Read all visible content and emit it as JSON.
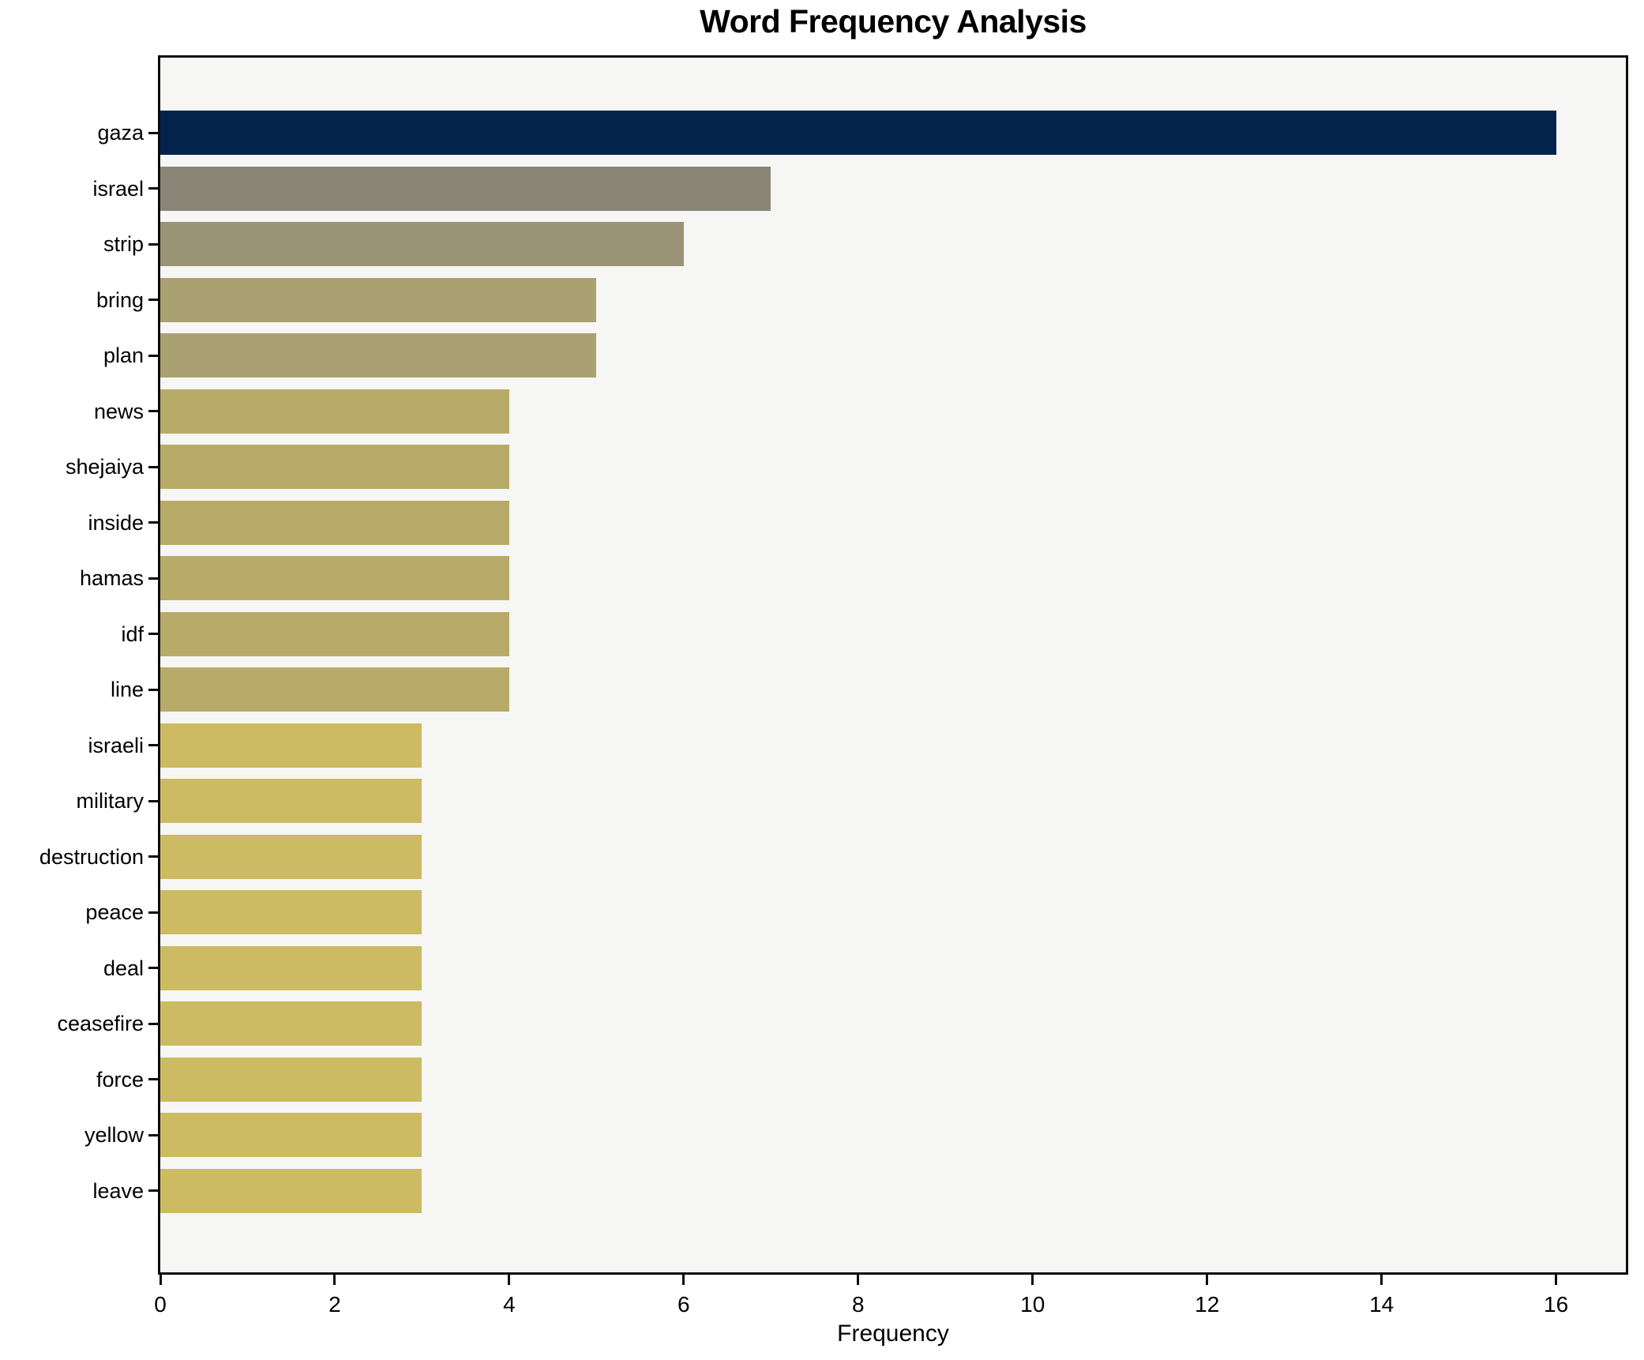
{
  "title": "Word Frequency Analysis",
  "xlabel": "Frequency",
  "chart_data": {
    "type": "bar",
    "orientation": "horizontal",
    "title": "Word Frequency Analysis",
    "xlabel": "Frequency",
    "ylabel": "",
    "categories": [
      "gaza",
      "israel",
      "strip",
      "bring",
      "plan",
      "news",
      "shejaiya",
      "inside",
      "hamas",
      "idf",
      "line",
      "israeli",
      "military",
      "destruction",
      "peace",
      "deal",
      "ceasefire",
      "force",
      "yellow",
      "leave"
    ],
    "values": [
      16,
      7,
      6,
      5,
      5,
      4,
      4,
      4,
      4,
      4,
      4,
      3,
      3,
      3,
      3,
      3,
      3,
      3,
      3,
      3
    ],
    "bar_colors": [
      "#03234b",
      "#898677",
      "#9a9375",
      "#aaa172",
      "#aaa172",
      "#b8ab69",
      "#b8ab69",
      "#b8ab69",
      "#b8ab69",
      "#b8ab69",
      "#b8ab69",
      "#ccbb63",
      "#ccbb63",
      "#ccbb63",
      "#ccbb63",
      "#ccbb63",
      "#ccbb63",
      "#ccbb63",
      "#ccbb63",
      "#ccbb63"
    ],
    "xlim": [
      0,
      16.8
    ],
    "x_ticks": [
      0,
      2,
      4,
      6,
      8,
      10,
      12,
      14,
      16
    ],
    "x_tick_labels": [
      "0",
      "2",
      "4",
      "6",
      "8",
      "10",
      "12",
      "14",
      "16"
    ],
    "grid": false,
    "legend": false,
    "plot_background": "#f6f6f4",
    "figure_background": "#ffffff",
    "spine_color": "#0c0c0c"
  }
}
